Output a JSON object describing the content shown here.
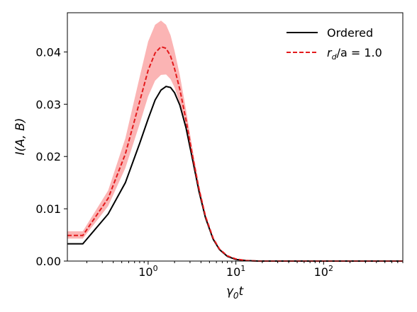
{
  "chart_data": {
    "type": "line",
    "xlabel_base": "γ",
    "xlabel_sub": "0",
    "xlabel_tail": "t",
    "ylabel": "I(A, B)",
    "x_scale": "log",
    "xlim": [
      0.12,
      800
    ],
    "ylim": [
      0,
      0.0475
    ],
    "grid": false,
    "legend_position": "top-right",
    "y_ticks": [
      {
        "value": 0.0,
        "label": "0.00"
      },
      {
        "value": 0.01,
        "label": "0.01"
      },
      {
        "value": 0.02,
        "label": "0.02"
      },
      {
        "value": 0.03,
        "label": "0.03"
      },
      {
        "value": 0.04,
        "label": "0.04"
      }
    ],
    "x_ticks": [
      {
        "value": 1,
        "base": "10",
        "exp": "0"
      },
      {
        "value": 10,
        "base": "10",
        "exp": "1"
      },
      {
        "value": 100,
        "base": "10",
        "exp": "2"
      }
    ],
    "series": [
      {
        "name": "Ordered",
        "color": "#000000",
        "style": "solid",
        "x": [
          0.12,
          0.18,
          0.35,
          0.55,
          0.8,
          1.0,
          1.2,
          1.4,
          1.6,
          1.8,
          2.0,
          2.3,
          2.7,
          3.2,
          3.8,
          4.5,
          5.5,
          6.5,
          8,
          10,
          13,
          18,
          30,
          60,
          150,
          800
        ],
        "y": [
          0.0033,
          0.0033,
          0.009,
          0.015,
          0.0225,
          0.0272,
          0.0308,
          0.0327,
          0.0334,
          0.0332,
          0.0322,
          0.0298,
          0.0255,
          0.0195,
          0.0133,
          0.0083,
          0.0042,
          0.0022,
          0.0009,
          0.0003,
          0.0001,
          0.0,
          0.0,
          0.0,
          0.0,
          0.0
        ]
      },
      {
        "name_base": "r",
        "name_sub": "d",
        "name_tail": "/a = 1.0",
        "color": "#e31a1c",
        "style": "dashed",
        "band_color": "#fbb4b4",
        "x": [
          0.12,
          0.18,
          0.35,
          0.55,
          0.8,
          1.0,
          1.2,
          1.4,
          1.6,
          1.8,
          2.0,
          2.3,
          2.7,
          3.2,
          3.8,
          4.5,
          5.5,
          6.5,
          8,
          10,
          13,
          18,
          30,
          60,
          150,
          800
        ],
        "y": [
          0.0049,
          0.0049,
          0.012,
          0.0205,
          0.0305,
          0.0365,
          0.0398,
          0.041,
          0.0407,
          0.0392,
          0.0368,
          0.0328,
          0.027,
          0.0202,
          0.0138,
          0.0086,
          0.0044,
          0.0023,
          0.001,
          0.0004,
          0.0001,
          0.0,
          0.0,
          0.0,
          0.0,
          0.0
        ],
        "upper": [
          0.0057,
          0.0057,
          0.0135,
          0.0235,
          0.0352,
          0.042,
          0.0452,
          0.046,
          0.0452,
          0.0432,
          0.0402,
          0.0355,
          0.029,
          0.0215,
          0.0146,
          0.009,
          0.0046,
          0.0024,
          0.0011,
          0.0004,
          0.0001,
          0.0,
          0.0,
          0.0,
          0.0,
          0.0
        ],
        "lower": [
          0.0043,
          0.0043,
          0.0105,
          0.0178,
          0.0262,
          0.0315,
          0.0345,
          0.0356,
          0.0357,
          0.0348,
          0.0332,
          0.0301,
          0.025,
          0.0189,
          0.013,
          0.0082,
          0.0042,
          0.0022,
          0.0009,
          0.0003,
          0.0001,
          0.0,
          0.0,
          0.0,
          0.0,
          0.0
        ]
      }
    ]
  }
}
